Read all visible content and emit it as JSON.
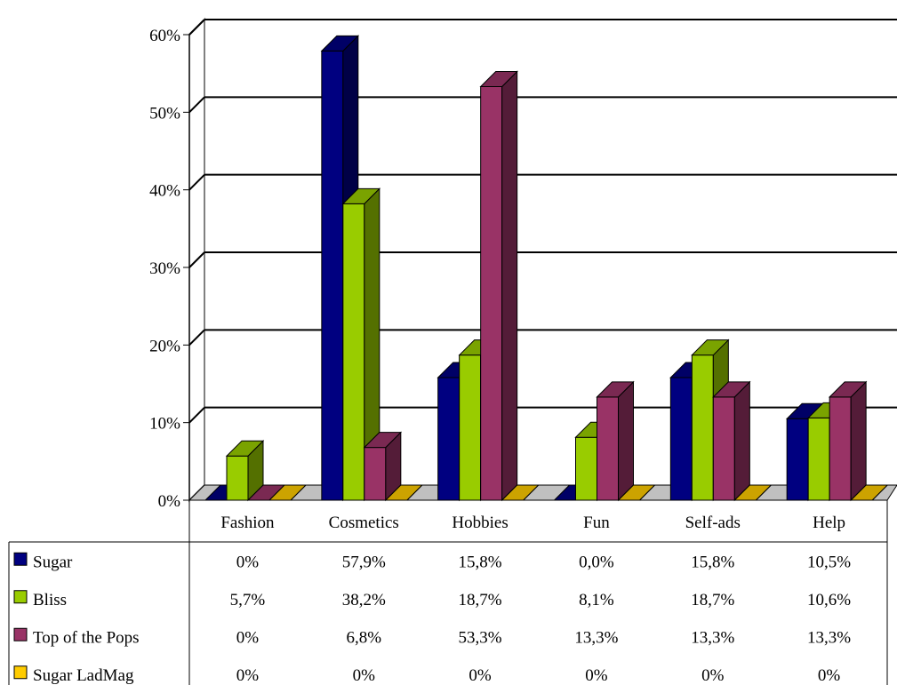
{
  "chart_data": {
    "type": "bar",
    "style": "3d clustered column with data table",
    "categories": [
      "Fashion",
      "Cosmetics",
      "Hobbies",
      "Fun",
      "Self-ads",
      "Help"
    ],
    "y_ticks": [
      "0%",
      "10%",
      "20%",
      "30%",
      "40%",
      "50%",
      "60%"
    ],
    "ylim": [
      0,
      60
    ],
    "grid": true,
    "legend": "in data table, left column",
    "series": [
      {
        "name": "Sugar",
        "color": "#000080",
        "values": [
          0,
          57.9,
          15.8,
          0.0,
          15.8,
          10.5
        ],
        "labels": [
          "0%",
          "57,9%",
          "15,8%",
          "0,0%",
          "15,8%",
          "10,5%"
        ]
      },
      {
        "name": "Bliss",
        "color": "#99CC00",
        "values": [
          5.7,
          38.2,
          18.7,
          8.1,
          18.7,
          10.6
        ],
        "labels": [
          "5,7%",
          "38,2%",
          "18,7%",
          "8,1%",
          "18,7%",
          "10,6%"
        ]
      },
      {
        "name": "Top of the Pops",
        "color": "#993366",
        "values": [
          0,
          6.8,
          53.3,
          13.3,
          13.3,
          13.3
        ],
        "labels": [
          "0%",
          "6,8%",
          "53,3%",
          "13,3%",
          "13,3%",
          "13,3%"
        ]
      },
      {
        "name": "Sugar LadMag",
        "color": "#FFCC00",
        "values": [
          0,
          0,
          0,
          0,
          0,
          0
        ],
        "labels": [
          "0%",
          "0%",
          "0%",
          "0%",
          "0%",
          "0%"
        ]
      }
    ]
  }
}
